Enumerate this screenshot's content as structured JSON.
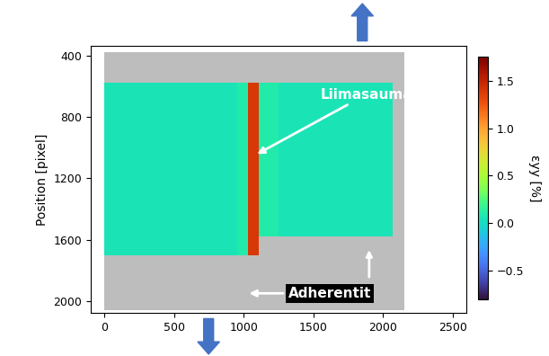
{
  "chart_data": {
    "type": "heatmap",
    "y_label": "Position [pixel]",
    "xlim": [
      -100,
      2600
    ],
    "xticks": [
      0,
      500,
      1000,
      1500,
      2000,
      2500
    ],
    "ylim": [
      2080,
      340
    ],
    "yticks": [
      400,
      800,
      1200,
      1600,
      2000
    ],
    "x_bins": [
      0,
      200,
      400,
      600,
      800,
      950,
      1030,
      1110,
      1250,
      1450,
      1650,
      1850,
      2070,
      2150
    ],
    "y_bins": [
      380,
      580,
      780,
      980,
      1180,
      1380,
      1580,
      1700,
      2060
    ],
    "cells": [
      [
        null,
        null,
        null,
        null,
        null,
        null,
        null,
        null,
        null,
        null,
        null,
        null,
        null
      ],
      [
        0.05,
        0.05,
        0.05,
        0.05,
        0.05,
        0.1,
        1.4,
        0.1,
        0.05,
        0.05,
        0.05,
        0.05,
        null
      ],
      [
        0.05,
        0.05,
        0.05,
        0.05,
        0.05,
        0.1,
        1.4,
        0.1,
        0.05,
        0.05,
        0.05,
        0.05,
        null
      ],
      [
        0.05,
        0.05,
        0.05,
        0.05,
        0.05,
        0.1,
        1.4,
        0.1,
        0.05,
        0.05,
        0.05,
        0.05,
        null
      ],
      [
        0.05,
        0.05,
        0.05,
        0.05,
        0.05,
        0.1,
        1.4,
        0.1,
        0.05,
        0.05,
        0.05,
        0.05,
        null
      ],
      [
        0.05,
        0.05,
        0.05,
        0.05,
        0.05,
        0.1,
        1.4,
        0.1,
        0.05,
        0.05,
        0.05,
        0.05,
        null
      ],
      [
        0.05,
        0.05,
        0.05,
        0.05,
        0.05,
        0.1,
        1.4,
        null,
        null,
        null,
        null,
        null,
        null
      ],
      [
        null,
        null,
        null,
        null,
        null,
        null,
        null,
        null,
        null,
        null,
        null,
        null,
        null
      ]
    ],
    "colorbar_label": "εyy [%]",
    "colorbar_range": [
      -0.8,
      1.75
    ],
    "colorbar_ticks": [
      {
        "value": -0.5,
        "label": "−0.5"
      },
      {
        "value": 0,
        "label": "0.0"
      },
      0.5,
      {
        "value": 1,
        "label": "1.0"
      },
      1.5
    ],
    "annotations": [
      "Liimasauma",
      "Adherentit"
    ]
  }
}
